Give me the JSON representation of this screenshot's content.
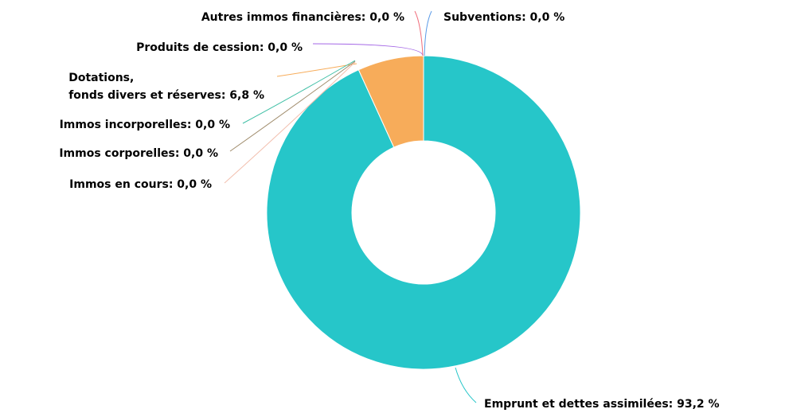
{
  "chart_data": {
    "type": "pie",
    "value_labels": [
      "Emprunt et dettes assimilées: 93,2 %",
      "Dotations,\nfonds divers et réserves: 6,8 %",
      "Immos en cours: 0,0 %",
      "Immos corporelles: 0,0 %",
      "Immos incorporelles: 0,0 %",
      "Produits de cession: 0,0 %",
      "Autres immos financières: 0,0 %",
      "Subventions: 0,0 %"
    ],
    "values": [
      93.2,
      6.8,
      0,
      0,
      0,
      0,
      0,
      0
    ],
    "colors": [
      "#26c6c9",
      "#f7ac5a",
      "#f2bfae",
      "#a08c6c",
      "#3fbfa5",
      "#a467e6",
      "#f06d7b",
      "#5b9be8"
    ]
  }
}
